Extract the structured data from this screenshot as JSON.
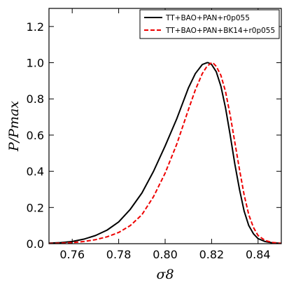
{
  "chart_data": {
    "type": "line",
    "title": "",
    "xlabel": "σ8",
    "ylabel": "P/Pmax",
    "xlim": [
      0.75,
      0.85
    ],
    "ylim": [
      0.0,
      1.3
    ],
    "xticks": [
      0.76,
      0.78,
      0.8,
      0.82,
      0.84
    ],
    "xtick_labels": [
      "0.76",
      "0.78",
      "0.80",
      "0.82",
      "0.84"
    ],
    "yticks": [
      0.0,
      0.2,
      0.4,
      0.6,
      0.8,
      1.0,
      1.2
    ],
    "ytick_labels": [
      "0.0",
      "0.2",
      "0.4",
      "0.6",
      "0.8",
      "1.0",
      "1.2"
    ],
    "grid": false,
    "legend_position": "top-right",
    "series": [
      {
        "name": "TT+BAO+PAN+r0p055",
        "color": "#000000",
        "style": "solid",
        "x": [
          0.75,
          0.755,
          0.76,
          0.765,
          0.77,
          0.775,
          0.78,
          0.785,
          0.79,
          0.795,
          0.8,
          0.805,
          0.81,
          0.813,
          0.816,
          0.818,
          0.8185,
          0.82,
          0.822,
          0.824,
          0.826,
          0.828,
          0.83,
          0.832,
          0.834,
          0.836,
          0.838,
          0.84,
          0.843,
          0.846,
          0.85
        ],
        "y": [
          0.003,
          0.006,
          0.012,
          0.025,
          0.045,
          0.075,
          0.12,
          0.19,
          0.28,
          0.4,
          0.54,
          0.69,
          0.86,
          0.94,
          0.99,
          1.0,
          1.0,
          0.99,
          0.95,
          0.87,
          0.75,
          0.6,
          0.44,
          0.3,
          0.18,
          0.1,
          0.055,
          0.028,
          0.012,
          0.005,
          0.002
        ]
      },
      {
        "name": "TT+BAO+PAN+BK14+r0p055",
        "color": "#ee0000",
        "style": "dashed",
        "x": [
          0.75,
          0.755,
          0.76,
          0.765,
          0.77,
          0.775,
          0.78,
          0.785,
          0.79,
          0.795,
          0.8,
          0.805,
          0.81,
          0.813,
          0.816,
          0.818,
          0.82,
          0.8205,
          0.822,
          0.824,
          0.826,
          0.828,
          0.83,
          0.832,
          0.834,
          0.836,
          0.838,
          0.84,
          0.843,
          0.846,
          0.85
        ],
        "y": [
          0.001,
          0.003,
          0.006,
          0.012,
          0.022,
          0.038,
          0.062,
          0.1,
          0.16,
          0.26,
          0.39,
          0.55,
          0.74,
          0.85,
          0.94,
          0.98,
          1.0,
          1.0,
          0.98,
          0.93,
          0.84,
          0.71,
          0.56,
          0.41,
          0.27,
          0.16,
          0.09,
          0.045,
          0.018,
          0.007,
          0.002
        ]
      }
    ]
  }
}
